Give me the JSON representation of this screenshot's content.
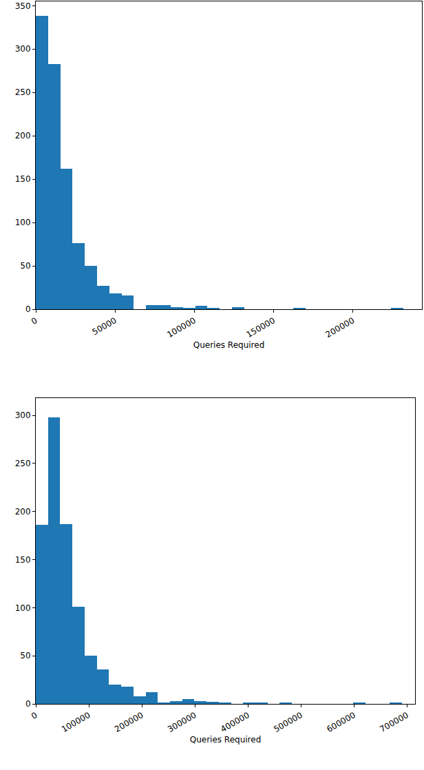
{
  "chart_data": [
    {
      "type": "histogram",
      "xlabel": "Queries Required",
      "color": "#1f77b4",
      "bins": [
        0,
        7730,
        15460,
        23190,
        30920,
        38650,
        46380,
        54110,
        61840,
        69570,
        77300,
        85030,
        92760,
        100490,
        108220,
        115950,
        123680,
        131410,
        139140,
        146870,
        154600,
        162330,
        170060,
        177790,
        185520,
        193250,
        200980,
        208710,
        216440,
        224170,
        231900
      ],
      "values": [
        338,
        283,
        162,
        76,
        50,
        27,
        18,
        16,
        0,
        5,
        5,
        2,
        1,
        4,
        1,
        0,
        2,
        0,
        0,
        0,
        0,
        1,
        0,
        0,
        0,
        0,
        0,
        0,
        0,
        1
      ],
      "xlim": [
        0,
        243500
      ],
      "xticks": [
        0,
        50000,
        100000,
        150000,
        200000
      ],
      "ylim": [
        0,
        355
      ],
      "yticks": [
        0,
        50,
        100,
        150,
        200,
        250,
        300,
        350
      ]
    },
    {
      "type": "histogram",
      "xlabel": "Queries Required",
      "color": "#1f77b4",
      "bins": [
        0,
        23000,
        46000,
        69000,
        92000,
        115000,
        138000,
        161000,
        184000,
        207000,
        230000,
        253000,
        276000,
        299000,
        322000,
        345000,
        368000,
        391000,
        414000,
        437000,
        460000,
        483000,
        506000,
        529000,
        552000,
        575000,
        598000,
        621000,
        644000,
        667000,
        690000
      ],
      "values": [
        186,
        298,
        187,
        101,
        50,
        36,
        20,
        18,
        8,
        12,
        1,
        3,
        5,
        3,
        2,
        1,
        0,
        1,
        1,
        0,
        1,
        0,
        0,
        0,
        0,
        0,
        1,
        0,
        0,
        1
      ],
      "xlim": [
        0,
        715000
      ],
      "xticks": [
        0,
        100000,
        200000,
        300000,
        400000,
        500000,
        600000,
        700000
      ],
      "ylim": [
        0,
        318
      ],
      "yticks": [
        0,
        50,
        100,
        150,
        200,
        250,
        300
      ]
    }
  ]
}
